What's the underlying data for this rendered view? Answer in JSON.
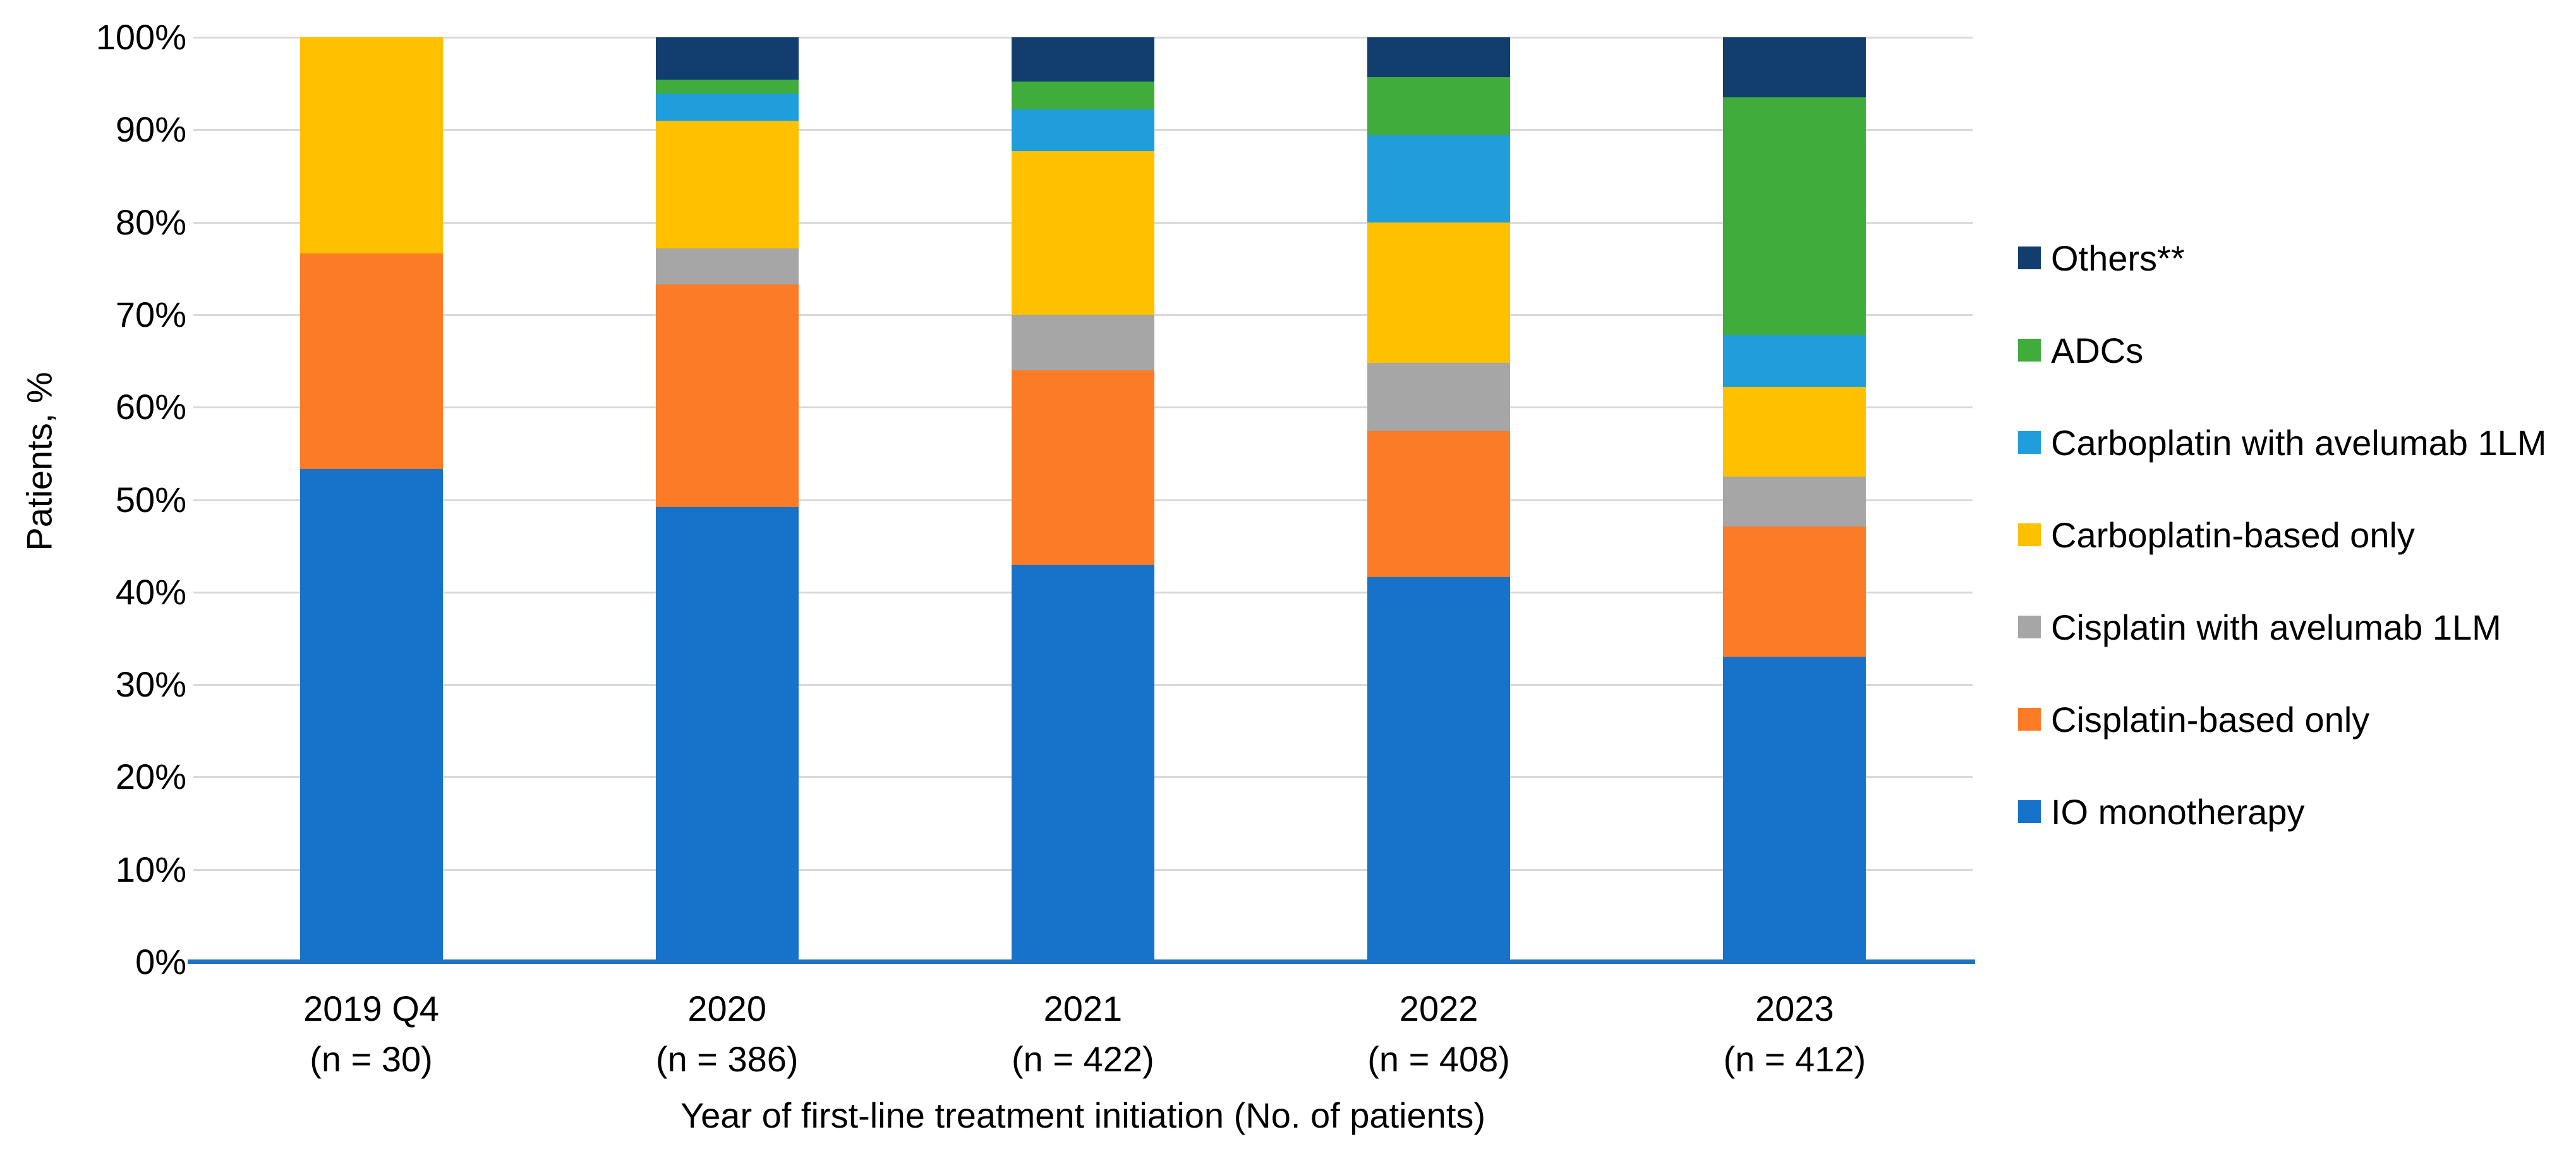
{
  "chart_data": {
    "type": "bar",
    "variant": "100%-stacked-column",
    "title": "",
    "ylabel": "Patients, %",
    "xlabel": "Year of first-line treatment initiation (No. of patients)",
    "ylim": [
      0,
      100
    ],
    "ytick_step": 10,
    "ytick_labels": [
      "0%",
      "10%",
      "20%",
      "30%",
      "40%",
      "50%",
      "60%",
      "70%",
      "80%",
      "90%",
      "100%"
    ],
    "grid": true,
    "gridline_color": "#D9D9D9",
    "axis_line_color": "#1F72C4",
    "legend_position": "right",
    "categories": [
      {
        "label": "2019 Q4",
        "sublabel": "(n = 30)"
      },
      {
        "label": "2020",
        "sublabel": "(n = 386)"
      },
      {
        "label": "2021",
        "sublabel": "(n = 422)"
      },
      {
        "label": "2022",
        "sublabel": "(n = 408)"
      },
      {
        "label": "2023",
        "sublabel": "(n = 412)"
      }
    ],
    "series": [
      {
        "name": "IO monotherapy",
        "color": "#1673C9",
        "values": [
          53.3,
          49.2,
          42.9,
          41.6,
          33.0
        ]
      },
      {
        "name": "Cisplatin-based only",
        "color": "#FB7B26",
        "values": [
          23.3,
          24.1,
          21.1,
          15.8,
          14.1
        ]
      },
      {
        "name": "Cisplatin with avelumab 1LM",
        "color": "#A6A6A6",
        "values": [
          0,
          3.9,
          6.0,
          7.4,
          5.4
        ]
      },
      {
        "name": "Carboplatin-based only",
        "color": "#FFC000",
        "values": [
          23.4,
          13.8,
          17.7,
          15.2,
          9.7
        ]
      },
      {
        "name": "Carboplatin with avelumab 1LM",
        "color": "#209EDB",
        "values": [
          0,
          2.9,
          4.5,
          9.4,
          5.6
        ]
      },
      {
        "name": "ADCs",
        "color": "#3FAC3C",
        "values": [
          0,
          1.5,
          3.0,
          6.3,
          25.7
        ]
      },
      {
        "name": "Others**",
        "color": "#113E6F",
        "values": [
          0,
          4.6,
          4.8,
          4.3,
          6.5
        ]
      }
    ]
  }
}
